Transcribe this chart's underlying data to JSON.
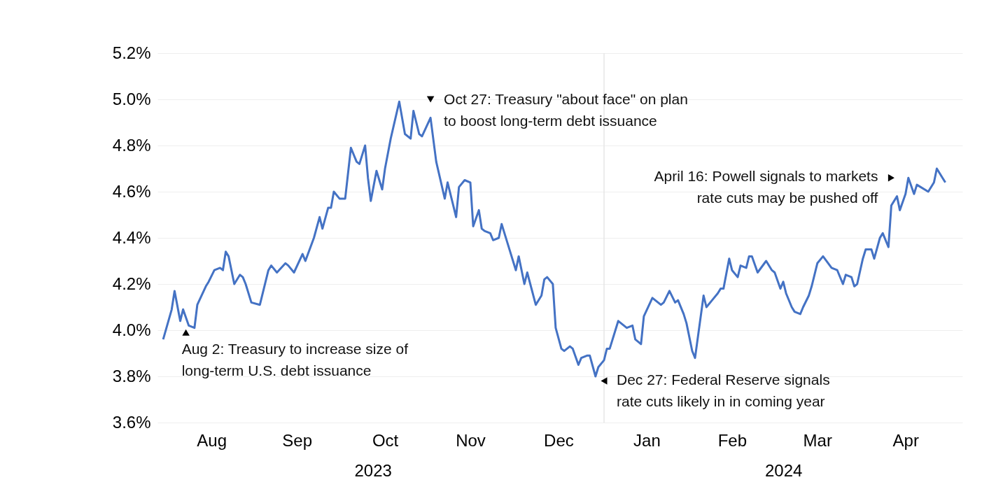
{
  "chart_data": {
    "type": "line",
    "x": [
      "2023-07-30",
      "2023-08-02",
      "2023-08-03",
      "2023-08-05",
      "2023-08-06",
      "2023-08-08",
      "2023-08-10",
      "2023-08-11",
      "2023-08-14",
      "2023-08-15",
      "2023-08-17",
      "2023-08-19",
      "2023-08-20",
      "2023-08-21",
      "2023-08-22",
      "2023-08-24",
      "2023-08-26",
      "2023-08-27",
      "2023-08-28",
      "2023-08-30",
      "2023-09-02",
      "2023-09-05",
      "2023-09-06",
      "2023-09-08",
      "2023-09-11",
      "2023-09-12",
      "2023-09-14",
      "2023-09-17",
      "2023-09-18",
      "2023-09-21",
      "2023-09-23",
      "2023-09-24",
      "2023-09-26",
      "2023-09-27",
      "2023-09-28",
      "2023-09-30",
      "2023-10-02",
      "2023-10-04",
      "2023-10-06",
      "2023-10-07",
      "2023-10-09",
      "2023-10-10",
      "2023-10-11",
      "2023-10-13",
      "2023-10-15",
      "2023-10-16",
      "2023-10-18",
      "2023-10-21",
      "2023-10-23",
      "2023-10-25",
      "2023-10-26",
      "2023-10-28",
      "2023-10-29",
      "2023-11-01",
      "2023-11-03",
      "2023-11-06",
      "2023-11-07",
      "2023-11-10",
      "2023-11-11",
      "2023-11-13",
      "2023-11-15",
      "2023-11-16",
      "2023-11-18",
      "2023-11-19",
      "2023-11-20",
      "2023-11-22",
      "2023-11-23",
      "2023-11-25",
      "2023-11-26",
      "2023-11-28",
      "2023-12-01",
      "2023-12-02",
      "2023-12-04",
      "2023-12-05",
      "2023-12-08",
      "2023-12-10",
      "2023-12-11",
      "2023-12-12",
      "2023-12-14",
      "2023-12-15",
      "2023-12-17",
      "2023-12-18",
      "2023-12-20",
      "2023-12-21",
      "2023-12-23",
      "2023-12-24",
      "2023-12-26",
      "2023-12-27",
      "2023-12-29",
      "2023-12-30",
      "2024-01-01",
      "2024-01-02",
      "2024-01-03",
      "2024-01-05",
      "2024-01-06",
      "2024-01-09",
      "2024-01-11",
      "2024-01-12",
      "2024-01-14",
      "2024-01-15",
      "2024-01-18",
      "2024-01-21",
      "2024-01-22",
      "2024-01-24",
      "2024-01-26",
      "2024-01-27",
      "2024-01-29",
      "2024-01-30",
      "2024-02-01",
      "2024-02-02",
      "2024-02-05",
      "2024-02-06",
      "2024-02-08",
      "2024-02-10",
      "2024-02-11",
      "2024-02-12",
      "2024-02-14",
      "2024-02-15",
      "2024-02-17",
      "2024-02-18",
      "2024-02-20",
      "2024-02-21",
      "2024-02-22",
      "2024-02-24",
      "2024-02-27",
      "2024-02-29",
      "2024-03-01",
      "2024-03-03",
      "2024-03-04",
      "2024-03-05",
      "2024-03-07",
      "2024-03-08",
      "2024-03-10",
      "2024-03-11",
      "2024-03-13",
      "2024-03-14",
      "2024-03-16",
      "2024-03-18",
      "2024-03-21",
      "2024-03-23",
      "2024-03-25",
      "2024-03-26",
      "2024-03-28",
      "2024-03-29",
      "2024-03-30",
      "2024-04-01",
      "2024-04-02",
      "2024-04-04",
      "2024-04-05",
      "2024-04-07",
      "2024-04-08",
      "2024-04-10",
      "2024-04-11",
      "2024-04-13",
      "2024-04-14",
      "2024-04-16",
      "2024-04-17",
      "2024-04-19",
      "2024-04-20",
      "2024-04-24",
      "2024-04-26",
      "2024-04-27",
      "2024-04-29",
      "2024-04-30"
    ],
    "series": [
      {
        "color": "#4472c4",
        "values": [
          3.96,
          4.09,
          4.17,
          4.04,
          4.09,
          4.02,
          4.01,
          4.11,
          4.19,
          4.21,
          4.26,
          4.27,
          4.26,
          4.34,
          4.32,
          4.2,
          4.24,
          4.23,
          4.2,
          4.12,
          4.11,
          4.26,
          4.28,
          4.25,
          4.29,
          4.28,
          4.25,
          4.33,
          4.3,
          4.4,
          4.49,
          4.44,
          4.53,
          4.53,
          4.6,
          4.57,
          4.57,
          4.79,
          4.73,
          4.72,
          4.8,
          4.66,
          4.56,
          4.69,
          4.61,
          4.7,
          4.83,
          4.99,
          4.85,
          4.83,
          4.95,
          4.85,
          4.84,
          4.92,
          4.73,
          4.57,
          4.64,
          4.49,
          4.62,
          4.65,
          4.64,
          4.45,
          4.52,
          4.44,
          4.43,
          4.42,
          4.39,
          4.4,
          4.46,
          4.38,
          4.26,
          4.32,
          4.2,
          4.25,
          4.11,
          4.15,
          4.22,
          4.23,
          4.2,
          4.01,
          3.92,
          3.91,
          3.93,
          3.92,
          3.85,
          3.88,
          3.89,
          3.89,
          3.8,
          3.84,
          3.87,
          3.92,
          3.92,
          4.0,
          4.04,
          4.01,
          4.02,
          3.96,
          3.94,
          4.06,
          4.14,
          4.11,
          4.12,
          4.17,
          4.12,
          4.13,
          4.07,
          4.03,
          3.91,
          3.88,
          4.15,
          4.1,
          4.13,
          4.16,
          4.18,
          4.18,
          4.31,
          4.26,
          4.23,
          4.28,
          4.27,
          4.32,
          4.32,
          4.25,
          4.3,
          4.26,
          4.25,
          4.18,
          4.21,
          4.16,
          4.1,
          4.08,
          4.07,
          4.1,
          4.15,
          4.19,
          4.29,
          4.32,
          4.27,
          4.26,
          4.2,
          4.24,
          4.23,
          4.19,
          4.2,
          4.31,
          4.35,
          4.35,
          4.31,
          4.4,
          4.42,
          4.36,
          4.54,
          4.58,
          4.52,
          4.59,
          4.66,
          4.59,
          4.63,
          4.6,
          4.64,
          4.7,
          4.66,
          4.64
        ]
      }
    ],
    "xlim": [
      "2023-07-28",
      "2024-05-06"
    ],
    "xticks": [
      {
        "value": "2023-08-16",
        "label": "Aug"
      },
      {
        "value": "2023-09-15",
        "label": "Sep"
      },
      {
        "value": "2023-10-16",
        "label": "Oct"
      },
      {
        "value": "2023-11-15",
        "label": "Nov"
      },
      {
        "value": "2023-12-16",
        "label": "Dec"
      },
      {
        "value": "2024-01-16",
        "label": "Jan"
      },
      {
        "value": "2024-02-15",
        "label": "Feb"
      },
      {
        "value": "2024-03-16",
        "label": "Mar"
      },
      {
        "value": "2024-04-16",
        "label": "Apr"
      }
    ],
    "ylim": [
      3.6,
      5.2
    ],
    "yticks": [
      {
        "value": 3.6,
        "label": "3.6%"
      },
      {
        "value": 3.8,
        "label": "3.8%"
      },
      {
        "value": 4.0,
        "label": "4.0%"
      },
      {
        "value": 4.2,
        "label": "4.2%"
      },
      {
        "value": 4.4,
        "label": "4.4%"
      },
      {
        "value": 4.6,
        "label": "4.6%"
      },
      {
        "value": 4.8,
        "label": "4.8%"
      },
      {
        "value": 5.0,
        "label": "5.0%"
      },
      {
        "value": 5.2,
        "label": "5.2%"
      }
    ],
    "grid": "y",
    "ref_lines": [
      {
        "axis": "x",
        "value": "2024-01-01",
        "color": "#e6e6e6"
      }
    ],
    "annotations": [
      {
        "text": "Aug 2: Treasury to increase size of\nlong-term U.S. debt issuance",
        "x": "2023-08-07",
        "y": 3.99
      },
      {
        "text": "Oct 27: Treasury \"about face\" on plan\nto boost long-term debt issuance",
        "x": "2023-11-01",
        "y": 5.0
      },
      {
        "text": "Dec 27: Federal Reserve signals\nrate cuts likely in in coming year",
        "x": "2024-01-01",
        "y": 3.78
      },
      {
        "text": "April 16: Powell signals to markets\nrate cuts may be pushed off",
        "x": "2024-04-11",
        "y": 4.66
      },
      "2023",
      "2024"
    ]
  }
}
